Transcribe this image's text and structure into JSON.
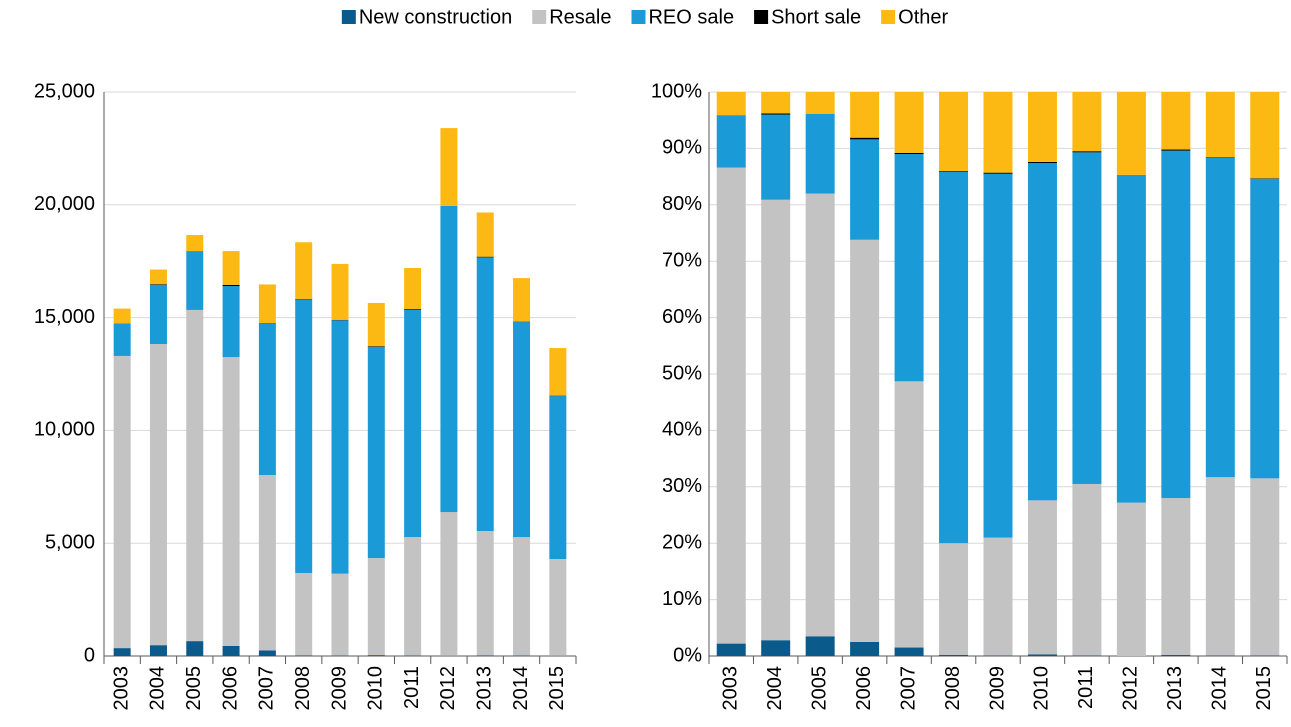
{
  "chart_data": [
    {
      "type": "stacked-bar",
      "categories": [
        "2003",
        "2004",
        "2005",
        "2006",
        "2007",
        "2008",
        "2009",
        "2010",
        "2011",
        "2012",
        "2013",
        "2014",
        "2015"
      ],
      "series": [
        {
          "name": "New construction",
          "color": "#0b5a8c",
          "values": [
            350,
            480,
            660,
            450,
            250,
            30,
            20,
            40,
            20,
            10,
            30,
            20,
            10
          ]
        },
        {
          "name": "Resale",
          "color": "#c3c3c3",
          "values": [
            12950,
            13350,
            14680,
            12800,
            7770,
            3650,
            3630,
            4300,
            5250,
            6370,
            5510,
            5250,
            4290
          ]
        },
        {
          "name": "REO sale",
          "color": "#1a9ad6",
          "values": [
            1450,
            2620,
            2610,
            3150,
            6700,
            12130,
            11230,
            9360,
            10080,
            13570,
            12130,
            9530,
            7220
          ]
        },
        {
          "name": "Short sale",
          "color": "#000000",
          "values": [
            0,
            30,
            0,
            50,
            20,
            20,
            20,
            30,
            30,
            0,
            30,
            20,
            20
          ]
        },
        {
          "name": "Other",
          "color": "#fdb913",
          "values": [
            650,
            650,
            710,
            1500,
            1730,
            2510,
            2480,
            1920,
            1820,
            3450,
            1960,
            1930,
            2110
          ]
        }
      ],
      "ylim": [
        0,
        25000
      ],
      "yticks": [
        0,
        {
          "value": 5000,
          "label": "5,000"
        },
        {
          "value": 10000,
          "label": "10,000"
        },
        {
          "value": 15000,
          "label": "15,000"
        },
        {
          "value": 20000,
          "label": "20,000"
        },
        {
          "value": 25000,
          "label": "25,000"
        }
      ],
      "grid": true,
      "legend": "top"
    },
    {
      "type": "stacked-bar",
      "categories": [
        "2003",
        "2004",
        "2005",
        "2006",
        "2007",
        "2008",
        "2009",
        "2010",
        "2011",
        "2012",
        "2013",
        "2014",
        "2015"
      ],
      "series": [
        {
          "color": "#0b5a8c",
          "values": [
            2.2,
            2.8,
            3.5,
            2.5,
            1.5,
            0.2,
            0.1,
            0.3,
            0.1,
            0,
            0.2,
            0.1,
            0.1
          ]
        },
        {
          "color": "#c3c3c3",
          "values": [
            84.4,
            78.1,
            78.5,
            71.3,
            47.2,
            19.8,
            20.9,
            27.3,
            30.4,
            27.2,
            27.8,
            31.6,
            31.4
          ]
        },
        {
          "color": "#1a9ad6",
          "values": [
            9.3,
            15.1,
            14.1,
            17.8,
            40.3,
            65.9,
            64.5,
            59.8,
            58.8,
            58.1,
            61.6,
            56.6,
            53.1
          ]
        },
        {
          "color": "#000000",
          "values": [
            0,
            0.2,
            0,
            0.3,
            0.2,
            0.1,
            0.2,
            0.2,
            0.2,
            0,
            0.2,
            0.1,
            0.1
          ]
        },
        {
          "color": "#fdb913",
          "values": [
            4.1,
            3.8,
            3.9,
            8.1,
            10.8,
            14,
            14.3,
            12.4,
            10.5,
            14.7,
            10.2,
            11.6,
            15.3
          ]
        }
      ],
      "ylim": [
        0,
        100
      ],
      "yticks": [
        {
          "value": 0,
          "label": "0%"
        },
        {
          "value": 10,
          "label": "10%"
        },
        {
          "value": 20,
          "label": "20%"
        },
        {
          "value": 30,
          "label": "30%"
        },
        {
          "value": 40,
          "label": "40%"
        },
        {
          "value": 50,
          "label": "50%"
        },
        {
          "value": 60,
          "label": "60%"
        },
        {
          "value": 70,
          "label": "70%"
        },
        {
          "value": 80,
          "label": "80%"
        },
        {
          "value": 90,
          "label": "90%"
        },
        {
          "value": 100,
          "label": "100%"
        }
      ],
      "grid": true
    }
  ]
}
